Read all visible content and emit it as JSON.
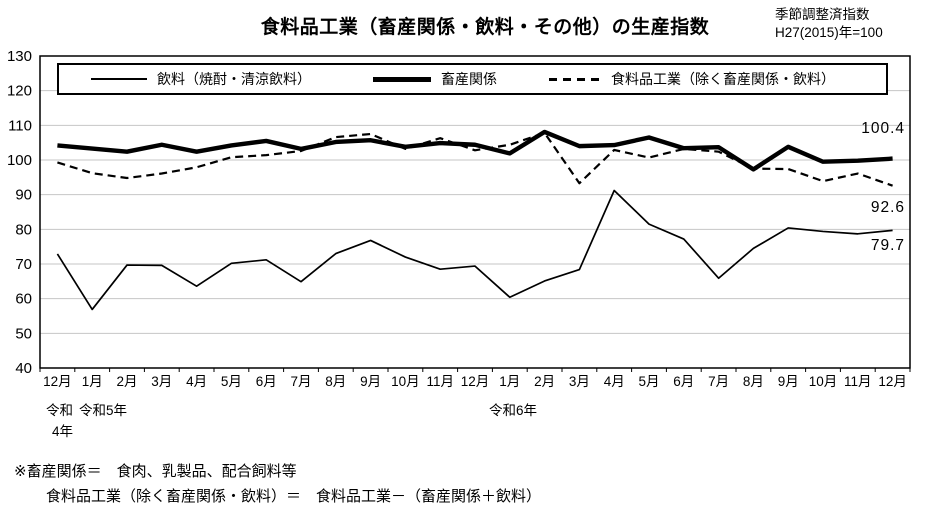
{
  "title": "食料品工業（畜産関係・飲料・その他）の生産指数",
  "subtitle": {
    "line1": "季節調整済指数",
    "line2": "H27(2015)年=100"
  },
  "chart_data": {
    "type": "line",
    "grid": "horizontal",
    "legend_position": "top-inside",
    "ylim": [
      40,
      130
    ],
    "ytick_step": 10,
    "x_categories": [
      "12月",
      "1月",
      "2月",
      "3月",
      "4月",
      "5月",
      "6月",
      "7月",
      "8月",
      "9月",
      "10月",
      "11月",
      "12月",
      "1月",
      "2月",
      "3月",
      "4月",
      "5月",
      "6月",
      "7月",
      "8月",
      "9月",
      "10月",
      "11月",
      "12月"
    ],
    "era": {
      "reiwa4_line1": "令和",
      "reiwa4_line2": "4年",
      "reiwa5": "令和5年",
      "reiwa6": "令和6年"
    },
    "series": [
      {
        "name": "飲料（焼酎・清涼飲料）",
        "style": "thin-solid",
        "values": [
          72.9,
          56.9,
          69.7,
          69.6,
          63.6,
          70.2,
          71.2,
          64.9,
          73.0,
          76.8,
          72.0,
          68.5,
          69.4,
          60.4,
          65.1,
          68.4,
          91.2,
          81.5,
          77.2,
          65.9,
          74.5,
          80.4,
          79.4,
          78.7,
          79.7
        ]
      },
      {
        "name": "畜産関係",
        "style": "thick-solid",
        "values": [
          104.2,
          103.3,
          102.4,
          104.4,
          102.4,
          104.2,
          105.5,
          103.2,
          105.2,
          105.7,
          103.8,
          104.9,
          104.4,
          101.9,
          108.1,
          104.0,
          104.3,
          106.5,
          103.4,
          103.7,
          97.3,
          103.8,
          99.5,
          99.8,
          100.4
        ]
      },
      {
        "name": "食料品工業（除く畜産関係・飲料）",
        "style": "dashed",
        "values": [
          99.3,
          96.2,
          94.8,
          96.1,
          97.9,
          100.8,
          101.4,
          102.6,
          106.6,
          107.5,
          103.2,
          106.3,
          102.8,
          104.4,
          107.8,
          93.3,
          102.9,
          100.7,
          103.2,
          102.4,
          97.5,
          97.4,
          93.9,
          96.1,
          92.6
        ]
      }
    ],
    "end_labels": [
      {
        "text": "100.4"
      },
      {
        "text": "92.6"
      },
      {
        "text": "79.7"
      }
    ]
  },
  "notes": [
    "※畜産関係＝　食肉、乳製品、配合飼料等",
    "食料品工業（除く畜産関係・飲料）＝　食料品工業－（畜産関係＋飲料）"
  ]
}
